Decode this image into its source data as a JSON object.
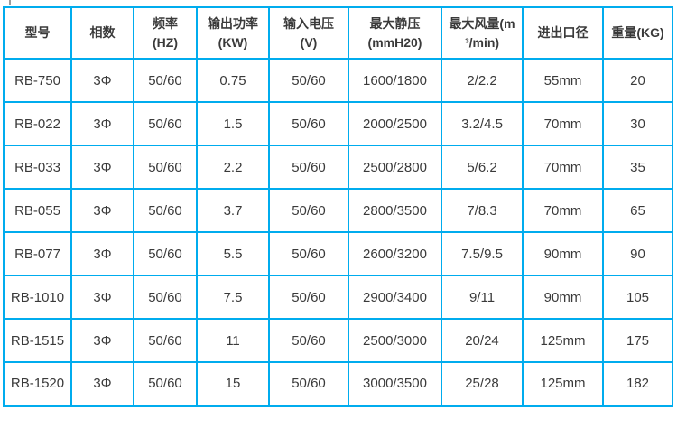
{
  "colors": {
    "border": "#00ACEE",
    "text": "#3a3a3a",
    "background": "#ffffff",
    "artifact": "#9c9c9c"
  },
  "chart_data": {
    "type": "table",
    "title": "",
    "columns": [
      "型号",
      "相数",
      "频率\n(HZ)",
      "输出功率\n(KW)",
      "输入电压\n(V)",
      "最大静压\n(mmH20)",
      "最大风量(m\n³/min)",
      "进出口径",
      "重量(KG)"
    ],
    "rows": [
      [
        "RB-750",
        "3Φ",
        "50/60",
        "0.75",
        "50/60",
        "1600/1800",
        "2/2.2",
        "55mm",
        "20"
      ],
      [
        "RB-022",
        "3Φ",
        "50/60",
        "1.5",
        "50/60",
        "2000/2500",
        "3.2/4.5",
        "70mm",
        "30"
      ],
      [
        "RB-033",
        "3Φ",
        "50/60",
        "2.2",
        "50/60",
        "2500/2800",
        "5/6.2",
        "70mm",
        "35"
      ],
      [
        "RB-055",
        "3Φ",
        "50/60",
        "3.7",
        "50/60",
        "2800/3500",
        "7/8.3",
        "70mm",
        "65"
      ],
      [
        "RB-077",
        "3Φ",
        "50/60",
        "5.5",
        "50/60",
        "2600/3200",
        "7.5/9.5",
        "90mm",
        "90"
      ],
      [
        "RB-1010",
        "3Φ",
        "50/60",
        "7.5",
        "50/60",
        "2900/3400",
        "9/11",
        "90mm",
        "105"
      ],
      [
        "RB-1515",
        "3Φ",
        "50/60",
        "11",
        "50/60",
        "2500/3000",
        "20/24",
        "125mm",
        "175"
      ],
      [
        "RB-1520",
        "3Φ",
        "50/60",
        "15",
        "50/60",
        "3000/3500",
        "25/28",
        "125mm",
        "182"
      ]
    ]
  }
}
